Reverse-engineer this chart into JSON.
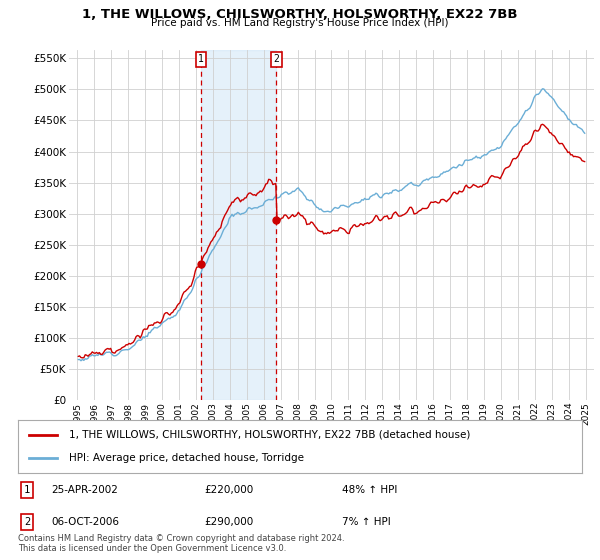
{
  "title": "1, THE WILLOWS, CHILSWORTHY, HOLSWORTHY, EX22 7BB",
  "subtitle": "Price paid vs. HM Land Registry's House Price Index (HPI)",
  "legend_line1": "1, THE WILLOWS, CHILSWORTHY, HOLSWORTHY, EX22 7BB (detached house)",
  "legend_line2": "HPI: Average price, detached house, Torridge",
  "footnote1": "Contains HM Land Registry data © Crown copyright and database right 2024.",
  "footnote2": "This data is licensed under the Open Government Licence v3.0.",
  "sale1_label": "1",
  "sale1_date": "25-APR-2002",
  "sale1_price": "£220,000",
  "sale1_hpi": "48% ↑ HPI",
  "sale2_label": "2",
  "sale2_date": "06-OCT-2006",
  "sale2_price": "£290,000",
  "sale2_hpi": "7% ↑ HPI",
  "hpi_color": "#6baed6",
  "price_color": "#cc0000",
  "shade_color": "#cce4f7",
  "sale1_x": 2002.29,
  "sale2_x": 2006.75,
  "ylim_top": 562500,
  "ylim_bottom": 0,
  "yticks": [
    0,
    50000,
    100000,
    150000,
    200000,
    250000,
    300000,
    350000,
    400000,
    450000,
    500000,
    550000
  ],
  "xlim_left": 1994.5,
  "xlim_right": 2025.5
}
